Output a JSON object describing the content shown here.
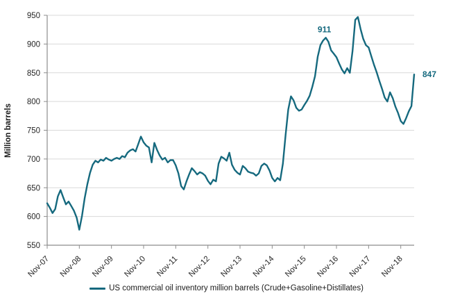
{
  "chart_data": {
    "type": "line",
    "title": "",
    "xlabel": "",
    "ylabel": "Million barrels",
    "ylim": [
      550,
      950
    ],
    "y_ticks": [
      550,
      600,
      650,
      700,
      750,
      800,
      850,
      900,
      950
    ],
    "x_tick_labels": [
      "Nov-07",
      "Nov-08",
      "Nov-09",
      "Nov-10",
      "Nov-11",
      "Nov-12",
      "Nov-13",
      "Nov-14",
      "Nov-15",
      "Nov-16",
      "Nov-17",
      "Nov-18"
    ],
    "x_tick_interval": 12,
    "grid": "horizontal",
    "legend_position": "bottom",
    "series": [
      {
        "name": "US commercial oil inventory million barrels (Crude+Gasoline+Distillates)",
        "start_label": "Nov-07",
        "frequency": "monthly",
        "values": [
          623,
          615,
          606,
          613,
          635,
          646,
          633,
          621,
          626,
          618,
          610,
          598,
          577,
          601,
          632,
          656,
          676,
          690,
          697,
          694,
          699,
          697,
          702,
          699,
          697,
          700,
          702,
          700,
          705,
          703,
          711,
          715,
          717,
          713,
          726,
          739,
          729,
          723,
          720,
          694,
          728,
          716,
          706,
          699,
          702,
          694,
          698,
          698,
          689,
          675,
          653,
          647,
          661,
          673,
          684,
          679,
          673,
          677,
          675,
          671,
          662,
          656,
          664,
          661,
          692,
          704,
          701,
          697,
          711,
          690,
          681,
          676,
          673,
          688,
          684,
          678,
          676,
          675,
          671,
          675,
          688,
          692,
          689,
          680,
          667,
          661,
          667,
          663,
          692,
          742,
          786,
          809,
          802,
          789,
          784,
          786,
          794,
          801,
          810,
          826,
          844,
          878,
          898,
          906,
          911,
          904,
          889,
          883,
          877,
          866,
          856,
          849,
          858,
          850,
          888,
          942,
          947,
          926,
          909,
          898,
          894,
          879,
          864,
          851,
          836,
          822,
          807,
          800,
          816,
          806,
          791,
          780,
          766,
          761,
          771,
          783,
          792,
          847
        ]
      }
    ],
    "annotations": [
      {
        "text": "911",
        "index": 104,
        "value": 911,
        "role": "peak-label"
      },
      {
        "text": "847",
        "index": 137,
        "value": 847,
        "role": "latest-value-label"
      }
    ]
  },
  "colors": {
    "line": "#15697e",
    "annotation": "#15697e",
    "grid": "#d9d9d9",
    "axis": "#8c8c8c",
    "tick_text": "#262626",
    "axis_title_text": "#1a1a1a",
    "legend_text": "#1a1a1a"
  }
}
